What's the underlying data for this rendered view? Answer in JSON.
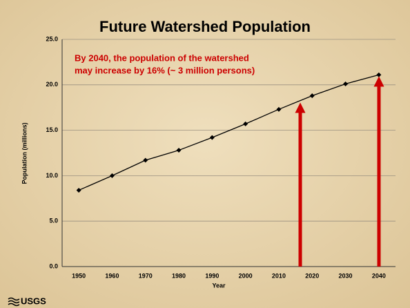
{
  "chart_data": {
    "type": "line",
    "title": "Future Watershed Population",
    "annotation": [
      "By 2040, the population of the watershed",
      "may increase by 16% (~ 3 million persons)"
    ],
    "xlabel": "Year",
    "ylabel": "Population (millions)",
    "categories": [
      "1950",
      "1960",
      "1970",
      "1980",
      "1990",
      "2000",
      "2010",
      "2020",
      "2030",
      "2040"
    ],
    "values": [
      8.4,
      10.0,
      11.7,
      12.8,
      14.2,
      15.7,
      17.3,
      18.8,
      20.1,
      21.1
    ],
    "color": "#000000",
    "ylim": [
      0,
      25
    ],
    "yticks": [
      {
        "value": 0,
        "label": "0.0"
      },
      {
        "value": 5,
        "label": "5.0"
      },
      {
        "value": 10,
        "label": "10.0"
      },
      {
        "value": 15,
        "label": "15.0"
      },
      {
        "value": 20,
        "label": "20.0"
      },
      {
        "value": 25,
        "label": "25.0"
      }
    ],
    "grid": true
  },
  "logo": "USGS"
}
